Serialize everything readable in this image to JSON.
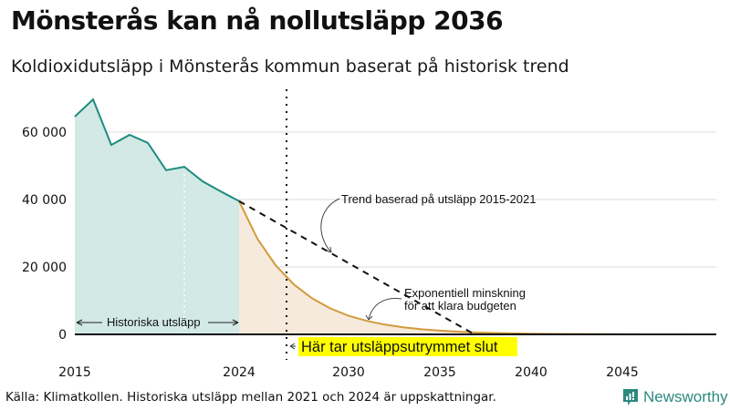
{
  "header": {
    "title": "Mönsterås kan nå nollutsläpp 2036",
    "subtitle": "Koldioxidutsläpp i Mönsterås kommun baserat på historisk trend"
  },
  "footer": {
    "source": "Källa: Klimatkollen. Historiska utsläpp mellan 2021 och 2024 är uppskattningar.",
    "brand": "Newsworthy"
  },
  "colors": {
    "historic_line": "#1f8c80",
    "historic_fill": "#d2e9e5",
    "budget_line": "#d39a3c",
    "budget_fill": "#f5eadb",
    "highlight": "#ffff00",
    "brand": "#2a8a7f"
  },
  "annotations": {
    "historic_label": "Historiska utsläpp",
    "trend_label": "Trend baserad på utsläpp 2015-2021",
    "exp_label_line1": "Exponentiell minskning",
    "exp_label_line2": "för att klara budgeten",
    "budget_end_label": "Här tar utsläppsutrymmet slut"
  },
  "axis": {
    "y_ticks": [
      "0",
      "20 000",
      "40 000",
      "60 000"
    ],
    "x_ticks": [
      "2015",
      "2024",
      "2030",
      "2035",
      "2040",
      "2045"
    ]
  },
  "chart_data": {
    "type": "area",
    "title": "Mönsterås kan nå nollutsläpp 2036",
    "subtitle": "Koldioxidutsläpp i Mönsterås kommun baserat på historisk trend",
    "xlabel": "",
    "ylabel": "",
    "xlim": [
      2015,
      2050
    ],
    "ylim": [
      0,
      70000
    ],
    "grid": "horizontal",
    "x_ticks": [
      2015,
      2024,
      2030,
      2035,
      2040,
      2045
    ],
    "y_ticks": [
      0,
      20000,
      40000,
      60000
    ],
    "series": [
      {
        "name": "Historiska utsläpp",
        "type": "area",
        "x": [
          2015,
          2016,
          2017,
          2018,
          2019,
          2020,
          2021,
          2022,
          2023,
          2024
        ],
        "values": [
          64600,
          69700,
          56200,
          59200,
          56800,
          48700,
          49700,
          45400,
          42400,
          39500
        ]
      },
      {
        "name": "Exponentiell minskning för att klara budgeten",
        "type": "area",
        "x": [
          2024,
          2025,
          2026,
          2027,
          2028,
          2029,
          2030,
          2031,
          2032,
          2033,
          2034,
          2035,
          2036,
          2037,
          2038,
          2039,
          2040,
          2042,
          2045,
          2050
        ],
        "values": [
          39500,
          28400,
          20500,
          14800,
          10700,
          7700,
          5500,
          4000,
          2900,
          2100,
          1500,
          1100,
          800,
          550,
          400,
          290,
          200,
          100,
          30,
          0
        ]
      },
      {
        "name": "Trend baserad på utsläpp 2015-2021",
        "type": "line",
        "style": "dashed",
        "x": [
          2024,
          2036.9,
          2050
        ],
        "values": [
          39500,
          0,
          0
        ]
      }
    ],
    "markers": [
      {
        "type": "vline",
        "x": 2026.6,
        "style": "dotted",
        "label": "Här tar utsläppsutrymmet slut"
      },
      {
        "type": "vline",
        "x": 2021,
        "style": "dotted-white",
        "label": ""
      }
    ],
    "annotations": [
      "Historiska utsläpp",
      "Trend baserad på utsläpp 2015-2021",
      "Exponentiell minskning för att klara budgeten",
      "Här tar utsläppsutrymmet slut"
    ]
  }
}
